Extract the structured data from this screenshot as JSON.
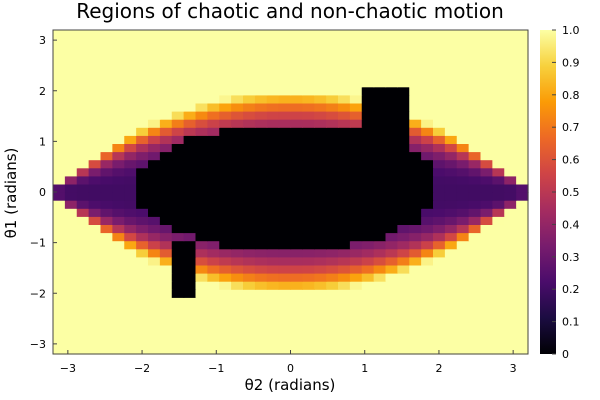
{
  "chart_data": {
    "type": "heatmap",
    "title": "Regions of chaotic and non-chaotic motion",
    "xlabel": "θ2 (radians)",
    "ylabel": "θ1 (radians)",
    "xlim": [
      -3.2,
      3.2
    ],
    "ylim": [
      -3.2,
      3.2
    ],
    "x_ticks": [
      -3,
      -2,
      -1,
      0,
      1,
      2,
      3
    ],
    "y_ticks": [
      -3,
      -2,
      -1,
      0,
      1,
      2,
      3
    ],
    "colorbar": {
      "colormap": "inferno",
      "range": [
        0,
        1
      ],
      "ticks": [
        "0",
        "0.1",
        "0.2",
        "0.3",
        "0.4",
        "0.5",
        "0.6",
        "0.7",
        "0.8",
        "0.9",
        "1.0"
      ],
      "stops": [
        "#000004",
        "#1b0c41",
        "#4a0c6b",
        "#781c6d",
        "#a52c60",
        "#cf4446",
        "#ed6925",
        "#fb9b06",
        "#f7d13d",
        "#fcffa4"
      ]
    },
    "grid": {
      "rows": 40,
      "cols": 40,
      "x_range": [
        -3.2,
        3.2
      ],
      "y_range": [
        -3.2,
        3.2
      ],
      "value_description": "fraction of non-chaotic motion per cell; 1.0 outside the central lens region, decreasing toward 0 inside the chaotic core",
      "band": {
        "center": [
          0.0,
          0.0
        ],
        "half_width_theta2": 3.3,
        "half_height_theta1": 2.0,
        "shape_power": 2.0,
        "edge_value": 1.0,
        "inner_value": 0.2
      },
      "core": {
        "center_theta2": -0.05,
        "center_theta1": 0.1,
        "half_width_theta2": 2.05,
        "half_height_theta1": 1.25,
        "value": 0.0,
        "extensions": [
          {
            "theta2": [
              -1.55,
              -1.25
            ],
            "theta1": [
              -2.1,
              -1.0
            ],
            "value": 0.0
          },
          {
            "theta2": [
              1.0,
              1.55
            ],
            "theta1": [
              0.8,
              2.05
            ],
            "value": 0.0
          }
        ]
      }
    }
  }
}
